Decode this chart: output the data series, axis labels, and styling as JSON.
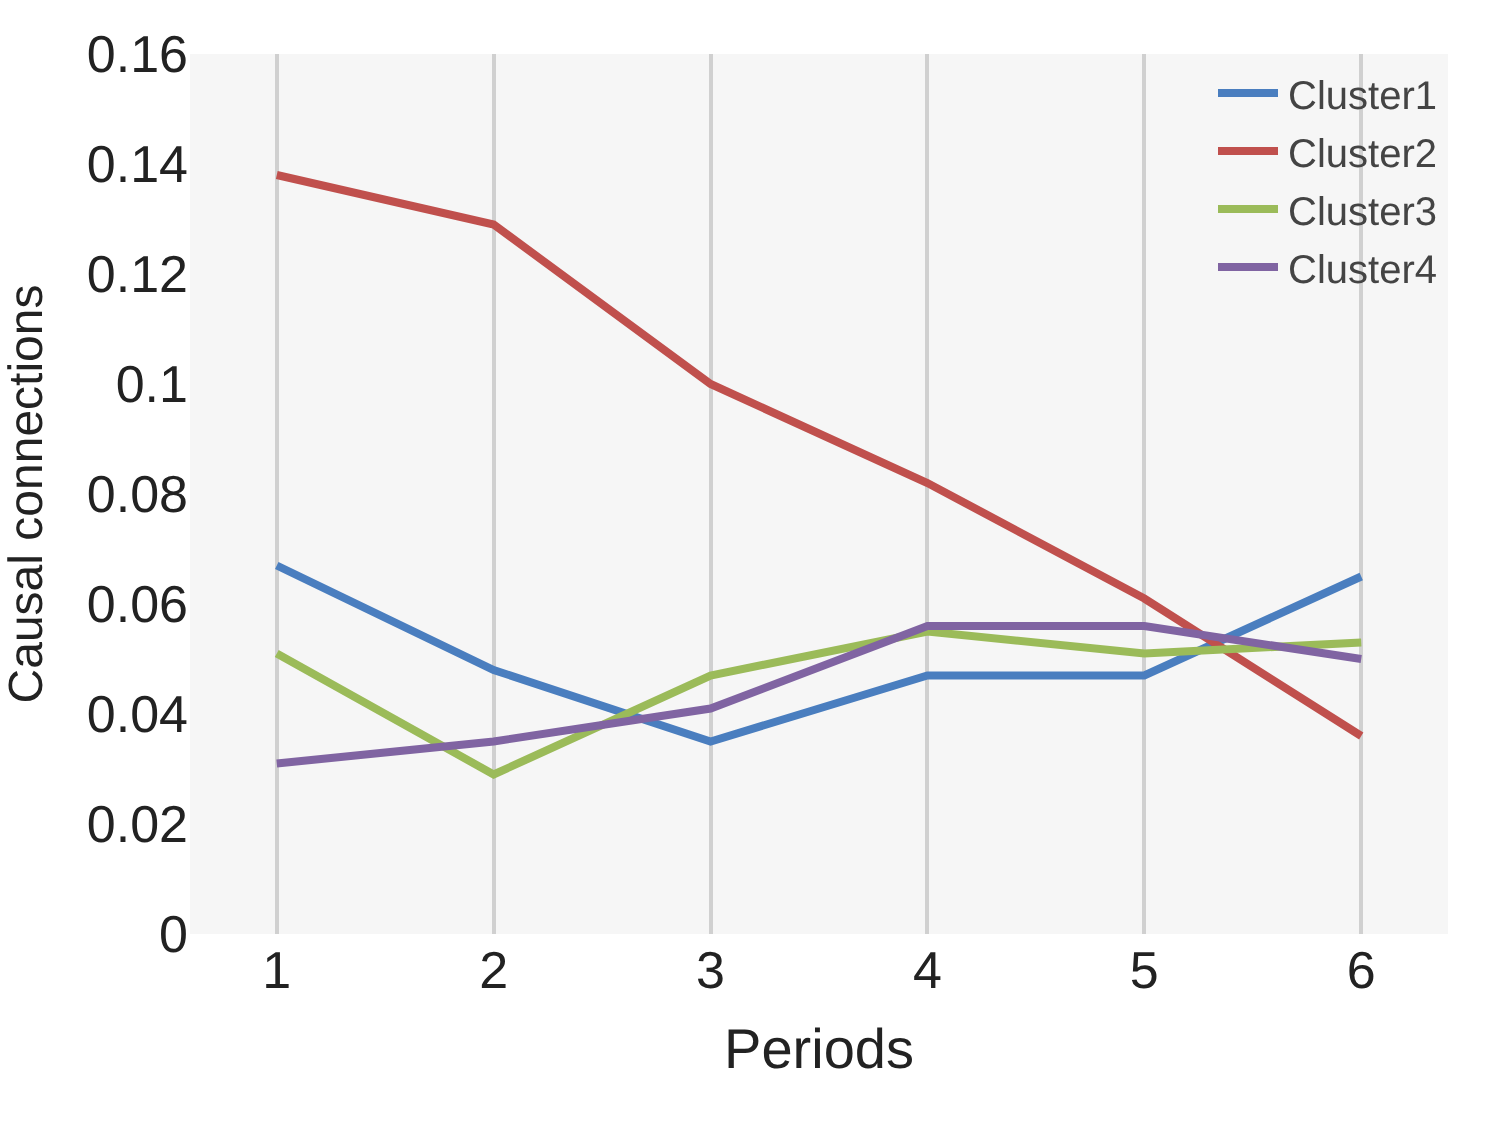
{
  "chart_data": {
    "type": "line",
    "xlabel": "Periods",
    "ylabel": "Causal connections",
    "x": [
      1,
      2,
      3,
      4,
      5,
      6
    ],
    "xlim": [
      0.6,
      6.4
    ],
    "xticks": [
      1,
      2,
      3,
      4,
      5,
      6
    ],
    "ylim": [
      0,
      0.16
    ],
    "yticks": [
      0,
      0.02,
      0.04,
      0.06,
      0.08,
      0.1,
      0.12,
      0.14,
      0.16
    ],
    "grid": "x",
    "legend": "top right",
    "marker": "none",
    "line_style": "solid",
    "series": [
      {
        "name": "Cluster1",
        "color": "#4a7ebf",
        "values": [
          0.067,
          0.048,
          0.035,
          0.047,
          0.047,
          0.065
        ]
      },
      {
        "name": "Cluster2",
        "color": "#c0504d",
        "values": [
          0.138,
          0.129,
          0.1,
          0.082,
          0.061,
          0.036
        ]
      },
      {
        "name": "Cluster3",
        "color": "#9bbb59",
        "values": [
          0.051,
          0.029,
          0.047,
          0.055,
          0.051,
          0.053
        ]
      },
      {
        "name": "Cluster4",
        "color": "#8064a2",
        "values": [
          0.031,
          0.035,
          0.041,
          0.056,
          0.056,
          0.05
        ]
      }
    ]
  }
}
